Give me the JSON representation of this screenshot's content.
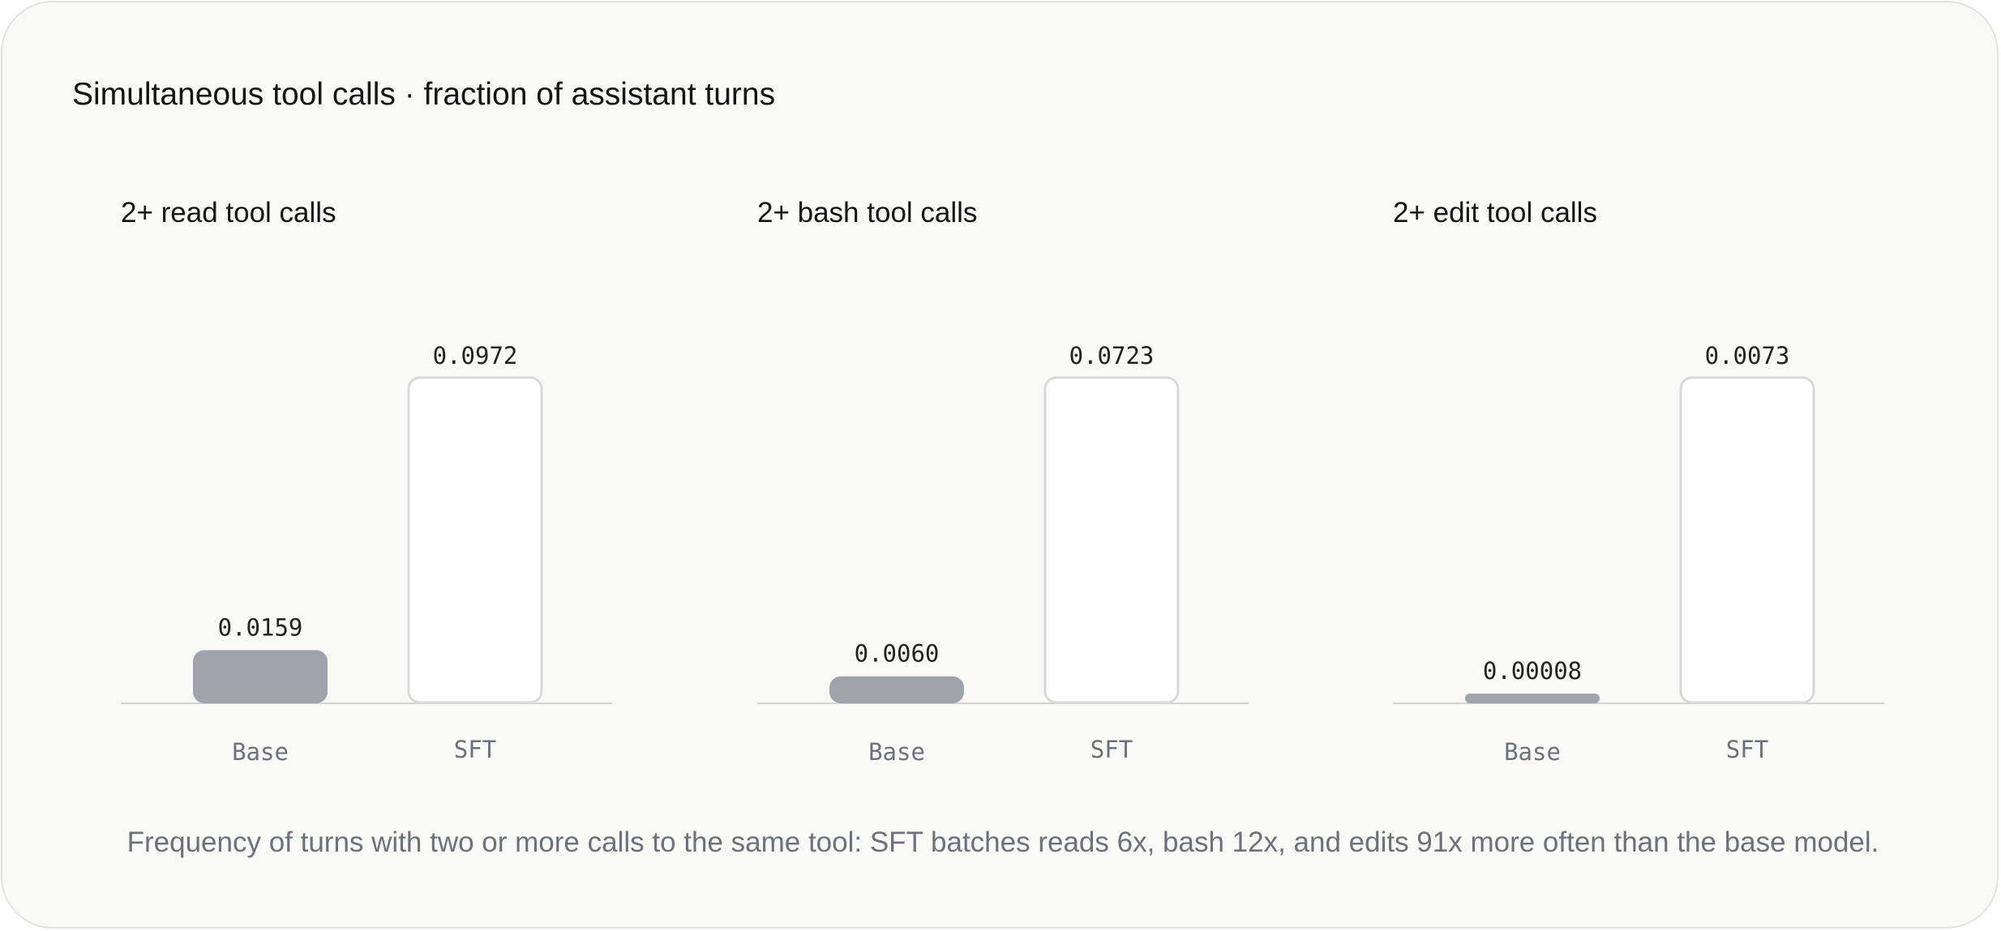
{
  "title": "Simultaneous tool calls · fraction of assistant turns",
  "caption": "Frequency of turns with two or more calls to the same tool: SFT batches reads 6x, bash 12x, and edits 91x more often than the base model.",
  "colors": {
    "base_bar": "#a0a3a9",
    "sft_bar_fill": "#ffffff",
    "sft_bar_stroke": "#d9d9d9",
    "baseline": "#d4d4d4",
    "value_label": "#222222",
    "axis_label": "#6e7178"
  },
  "chart_data": [
    {
      "type": "bar",
      "title": "2+ read tool calls",
      "categories": [
        "Base",
        "SFT"
      ],
      "values": [
        0.0159,
        0.0972
      ],
      "value_labels": [
        "0.0159",
        "0.0972"
      ],
      "ylim": [
        0,
        0.0972
      ],
      "grid": false
    },
    {
      "type": "bar",
      "title": "2+ bash tool calls",
      "categories": [
        "Base",
        "SFT"
      ],
      "values": [
        0.006,
        0.0723
      ],
      "value_labels": [
        "0.0060",
        "0.0723"
      ],
      "ylim": [
        0,
        0.0723
      ],
      "grid": false
    },
    {
      "type": "bar",
      "title": "2+ edit tool calls",
      "categories": [
        "Base",
        "SFT"
      ],
      "values": [
        8e-05,
        0.0073
      ],
      "value_labels": [
        "0.00008",
        "0.0073"
      ],
      "ylim": [
        0,
        0.0073
      ],
      "grid": false
    }
  ]
}
